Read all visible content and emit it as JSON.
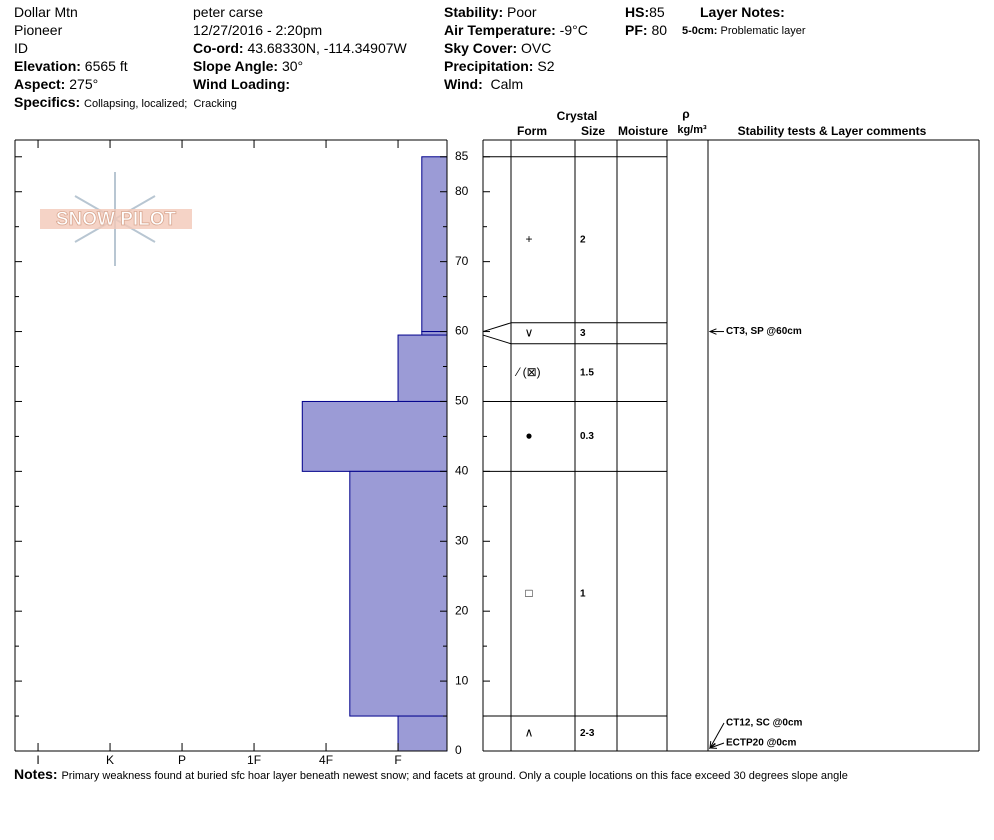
{
  "header": {
    "location": "Dollar Mtn",
    "zone": "Pioneer",
    "state": "ID",
    "elevation": {
      "label": "Elevation:",
      "value": "6565 ft"
    },
    "aspect": {
      "label": "Aspect:",
      "value": "275°"
    },
    "specifics": {
      "label": "Specifics:",
      "value": "Collapsing, localized;  Cracking"
    },
    "observer": "peter carse",
    "datetime": "12/27/2016 - 2:20pm",
    "coord": {
      "label": "Co-ord:",
      "value": "43.68330N, -114.34907W"
    },
    "slope_angle": {
      "label": "Slope Angle:",
      "value": "30°"
    },
    "wind_loading": {
      "label": "Wind Loading:"
    },
    "stability": {
      "label": "Stability:",
      "value": "Poor"
    },
    "air_temperature": {
      "label": "Air Temperature:",
      "value": "-9°C"
    },
    "sky_cover": {
      "label": "Sky Cover:",
      "value": "OVC"
    },
    "precipitation": {
      "label": "Precipitation:",
      "value": "S2"
    },
    "wind": {
      "label": "Wind:",
      "value": "Calm"
    },
    "hs": {
      "label": "HS:",
      "value": 85
    },
    "pf": {
      "label": "PF:",
      "value": 80
    },
    "layer_notes": {
      "label": "Layer Notes:",
      "range": "5-0cm:",
      "text": "Problematic layer"
    }
  },
  "logo": "SNOW PILOT",
  "chart_data": {
    "type": "snow-profile",
    "ylim": [
      0,
      87.4
    ],
    "yticks": [
      0,
      10,
      20,
      30,
      40,
      50,
      60,
      70,
      80,
      85
    ],
    "minor_yticks": [
      5,
      15,
      25,
      35,
      45,
      55,
      65,
      75
    ],
    "hardness_lim": [
      6.32,
      0.32
    ],
    "hardness_ticks": [
      {
        "value": 6,
        "label": "I"
      },
      {
        "value": 5,
        "label": "K"
      },
      {
        "value": 4,
        "label": "P"
      },
      {
        "value": 3,
        "label": "1F"
      },
      {
        "value": 2,
        "label": "4F"
      },
      {
        "value": 1,
        "label": "F"
      }
    ],
    "bar_color": "#9b9bd6",
    "columns": {
      "crystal": "Crystal",
      "form": "Form",
      "size": "Size",
      "moisture": "Moisture",
      "density_symbol": "ρ",
      "density_unit": "kg/m³",
      "comments": "Stability tests & Layer comments"
    },
    "layers": [
      {
        "top": 85,
        "bottom": 60,
        "hardness": 0.67,
        "form": "+",
        "size": 2
      },
      {
        "top": 60,
        "bottom": 59.5,
        "hardness": 0.67,
        "form": "∨",
        "size": 3
      },
      {
        "top": 59.5,
        "bottom": 50,
        "hardness": 1,
        "form": "⁄ (⊠)",
        "size": 1.5
      },
      {
        "top": 50,
        "bottom": 40,
        "hardness": 2.33,
        "form": "●",
        "size": 0.3
      },
      {
        "top": 40,
        "bottom": 5,
        "hardness": 1.67,
        "form": "□",
        "size": 1
      },
      {
        "top": 5,
        "bottom": 0,
        "hardness": 1,
        "form": "∧",
        "size": "2-3"
      }
    ],
    "tests": [
      {
        "text": "CT3, SP @60cm",
        "height": 60
      },
      {
        "text": "CT12, SC @0cm",
        "height": 0
      },
      {
        "text": "ECTP20 @0cm",
        "height": 0
      }
    ]
  },
  "notes": {
    "label": "Notes:",
    "text": "Primary weakness found at buried sfc hoar layer beneath newest snow; and facets at ground. Only a couple locations on this face exceed 30 degrees slope angle"
  }
}
